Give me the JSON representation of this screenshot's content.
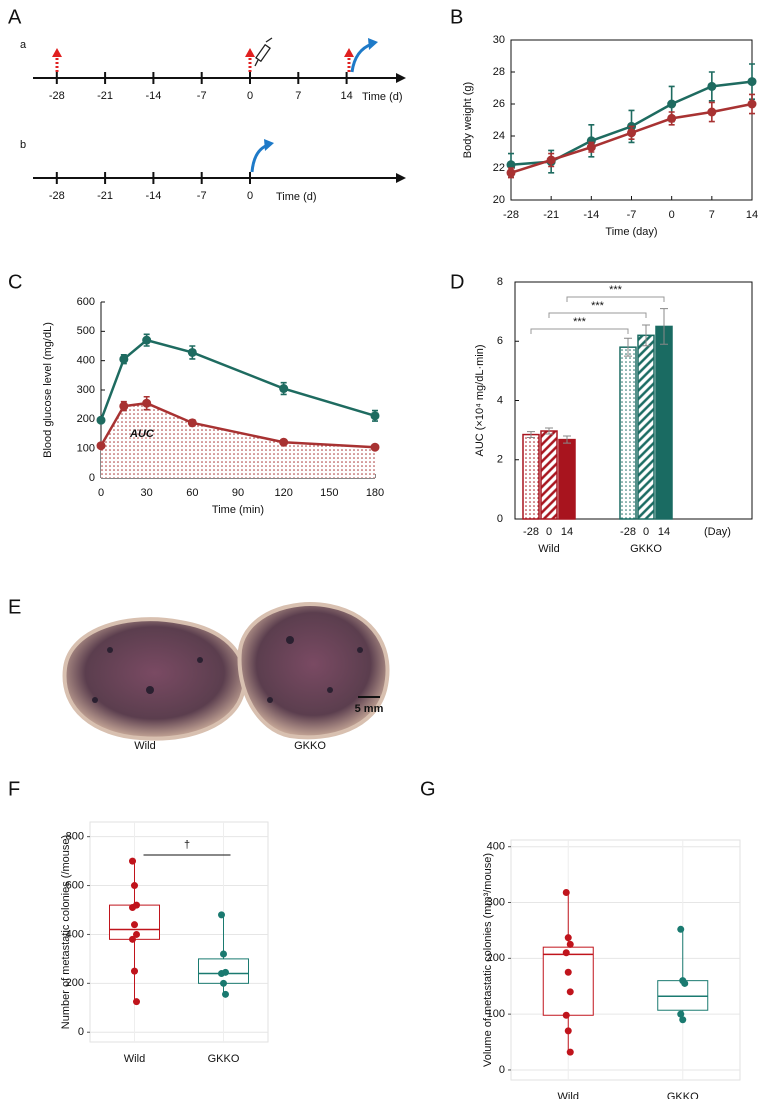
{
  "panels": [
    "A",
    "B",
    "C",
    "D",
    "E",
    "F",
    "G"
  ],
  "timeline": {
    "rows": [
      {
        "label": "a",
        "ticks": [
          -28,
          -21,
          -14,
          -7,
          0,
          7,
          14
        ],
        "axis_label": "Time (d)"
      },
      {
        "label": "b",
        "ticks": [
          -28,
          -21,
          -14,
          -7,
          0
        ],
        "axis_label": "Time (d)"
      }
    ]
  },
  "photo": {
    "labels": [
      "Wild",
      "GKKO"
    ],
    "scale_bar": "5 mm"
  },
  "chart_data": [
    {
      "type": "line",
      "x": [
        -28,
        -21,
        -14,
        -7,
        0,
        7,
        14
      ],
      "xlim": [
        -28,
        14
      ],
      "xticks": [
        -28,
        -21,
        -14,
        -7,
        0,
        7,
        14
      ],
      "ylim": [
        20,
        30
      ],
      "yticks": [
        20,
        22,
        24,
        26,
        28,
        30
      ],
      "x_label": "Time (day)",
      "y_label": "Body weight (g)",
      "frame": true,
      "series": [
        {
          "color": "#1e6b60",
          "values": [
            22.2,
            22.4,
            23.7,
            24.6,
            26.0,
            27.1,
            27.4
          ],
          "errors": [
            0.7,
            0.7,
            1.0,
            1.0,
            1.1,
            0.9,
            1.1
          ]
        },
        {
          "color": "#a83232",
          "values": [
            21.7,
            22.5,
            23.3,
            24.2,
            25.1,
            25.5,
            26.0
          ],
          "errors": [
            0.3,
            0.4,
            0.3,
            0.4,
            0.4,
            0.6,
            0.6
          ]
        }
      ]
    },
    {
      "type": "line",
      "x": [
        0,
        15,
        30,
        60,
        120,
        180
      ],
      "xlim": [
        0,
        180
      ],
      "xticks": [
        0,
        30,
        60,
        90,
        120,
        150,
        180
      ],
      "ylim": [
        0,
        600
      ],
      "yticks": [
        0,
        100,
        200,
        300,
        400,
        500,
        600
      ],
      "x_label": "Time (min)",
      "y_label": "Blood glucose level (mg/dL)",
      "frame": false,
      "annotation": "AUC",
      "series": [
        {
          "color": "#1e6b60",
          "values": [
            197,
            405,
            470,
            428,
            305,
            212
          ],
          "errors": [
            8,
            15,
            20,
            22,
            20,
            18
          ]
        },
        {
          "color": "#a83232",
          "values": [
            110,
            245,
            255,
            188,
            122,
            105
          ],
          "errors": [
            5,
            15,
            22,
            10,
            6,
            5
          ],
          "fill_under": "dots"
        }
      ]
    },
    {
      "type": "bar",
      "ylim": [
        0,
        8
      ],
      "yticks": [
        0,
        2,
        4,
        6,
        8
      ],
      "y_label": "AUC (×10⁴ mg/dL·min)",
      "x_unit_label": "(Day)",
      "significance": [
        "***",
        "***",
        "***"
      ],
      "groups": [
        {
          "label": "Wild",
          "categories": [
            "-28",
            "0",
            "14"
          ],
          "values": [
            2.85,
            2.97,
            2.68
          ],
          "errors": [
            0.1,
            0.1,
            0.12
          ],
          "color": "#a8141e",
          "patterns": [
            "dots",
            "hatch",
            "solid"
          ]
        },
        {
          "label": "GKKO",
          "categories": [
            "-28",
            "0",
            "14"
          ],
          "values": [
            5.8,
            6.2,
            6.5
          ],
          "errors": [
            0.3,
            0.35,
            0.6
          ],
          "color": "#1a6b62",
          "patterns": [
            "dots",
            "hatch",
            "solid"
          ]
        }
      ]
    },
    {
      "type": "box",
      "categories": [
        "Wild",
        "GKKO"
      ],
      "ylim": [
        -40,
        860
      ],
      "yticks": [
        0,
        200,
        400,
        600,
        800
      ],
      "y_label": "Number of metastatic colonies (/mouse)",
      "significance": "†",
      "boxes": [
        {
          "color": "#c0141c",
          "min": 125,
          "q1": 380,
          "median": 420,
          "q3": 520,
          "max": 700,
          "points": [
            700,
            600,
            520,
            510,
            440,
            400,
            380,
            250,
            125
          ]
        },
        {
          "color": "#1a7a70",
          "min": 155,
          "q1": 200,
          "median": 240,
          "q3": 300,
          "max": 480,
          "points": [
            480,
            320,
            245,
            240,
            200,
            155
          ]
        }
      ]
    },
    {
      "type": "box",
      "categories": [
        "Wild",
        "GKKO"
      ],
      "ylim": [
        -18,
        412
      ],
      "yticks": [
        0,
        100,
        200,
        300,
        400
      ],
      "y_label": "Volume of metastatic colonies (mm³/mouse)",
      "boxes": [
        {
          "color": "#c0141c",
          "min": 32,
          "q1": 98,
          "median": 207,
          "q3": 220,
          "max": 318,
          "points": [
            318,
            237,
            225,
            210,
            175,
            140,
            98,
            70,
            32
          ]
        },
        {
          "color": "#1a7a70",
          "min": 90,
          "q1": 107,
          "median": 132,
          "q3": 160,
          "max": 252,
          "points": [
            252,
            160,
            155,
            100,
            90
          ]
        }
      ]
    }
  ]
}
